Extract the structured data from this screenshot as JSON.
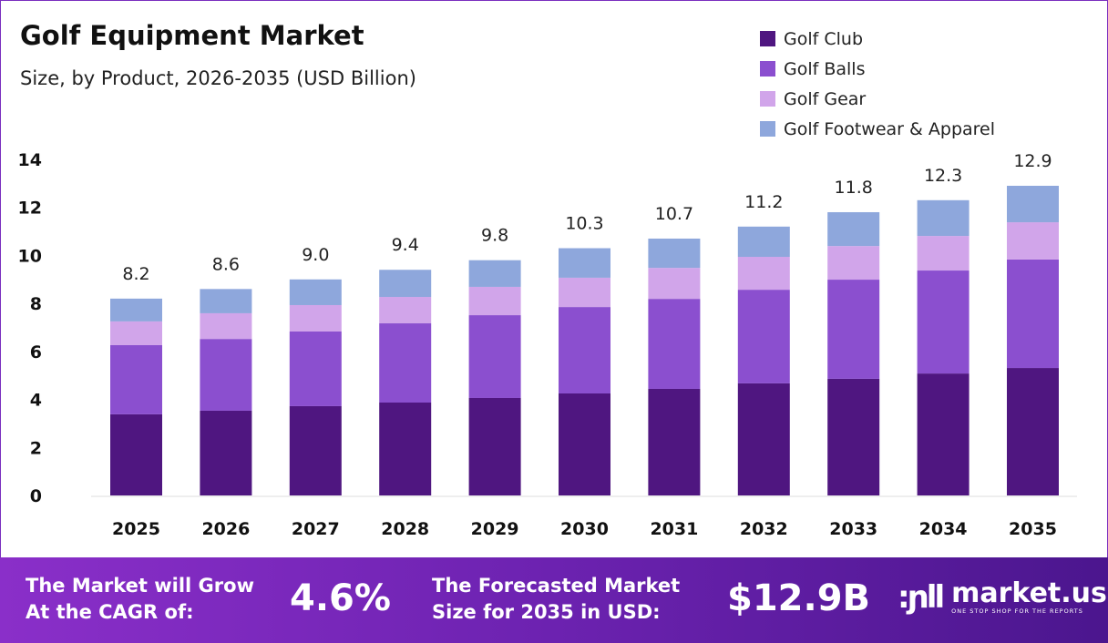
{
  "title": "Golf Equipment Market",
  "subtitle": "Size, by Product, 2026-2035 (USD Billion)",
  "chart_data": {
    "type": "bar",
    "stacked": true,
    "categories": [
      "2025",
      "2026",
      "2027",
      "2028",
      "2029",
      "2030",
      "2031",
      "2032",
      "2033",
      "2034",
      "2035"
    ],
    "series": [
      {
        "name": "Golf Club",
        "color": "#4f1680",
        "values": [
          3.38,
          3.53,
          3.72,
          3.87,
          4.06,
          4.25,
          4.44,
          4.67,
          4.86,
          5.08,
          5.31
        ]
      },
      {
        "name": "Golf Balls",
        "color": "#8b4fcf",
        "values": [
          2.88,
          2.99,
          3.11,
          3.3,
          3.45,
          3.6,
          3.75,
          3.9,
          4.13,
          4.29,
          4.52
        ]
      },
      {
        "name": "Golf Gear",
        "color": "#d1a5ea",
        "values": [
          0.99,
          1.07,
          1.1,
          1.1,
          1.18,
          1.22,
          1.29,
          1.37,
          1.4,
          1.44,
          1.55
        ]
      },
      {
        "name": "Golf Footwear & Apparel",
        "color": "#8ea7dc",
        "values": [
          0.95,
          1.01,
          1.07,
          1.13,
          1.11,
          1.23,
          1.22,
          1.26,
          1.41,
          1.49,
          1.52
        ]
      }
    ],
    "totals": [
      "8.2",
      "8.6",
      "9.0",
      "9.4",
      "9.8",
      "10.3",
      "10.7",
      "11.2",
      "11.8",
      "12.3",
      "12.9"
    ],
    "yticks": [
      "0",
      "2",
      "4",
      "6",
      "8",
      "10",
      "12",
      "14"
    ],
    "ylim": [
      0,
      14
    ],
    "grid": false,
    "legend_position": "top-right"
  },
  "footer": {
    "cagr_label_1": "The Market will Grow",
    "cagr_label_2": "At the CAGR of:",
    "cagr_value": "4.6%",
    "forecast_label_1": "The Forecasted Market",
    "forecast_label_2": "Size for 2035 in USD:",
    "forecast_value": "$12.9B",
    "logo_name": "market.us",
    "logo_tagline": "ONE STOP SHOP FOR THE REPORTS"
  }
}
